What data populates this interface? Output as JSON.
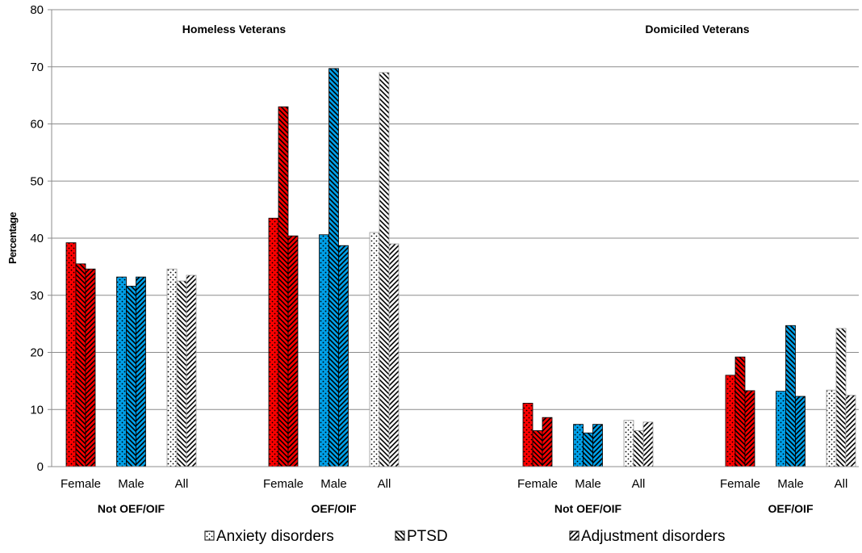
{
  "chart_data": {
    "type": "bar",
    "ylabel": "Percentage",
    "ylim": [
      0,
      80
    ],
    "yticks": [
      0,
      10,
      20,
      30,
      40,
      50,
      60,
      70,
      80
    ],
    "grid": true,
    "legend_position": "bottom",
    "colors": {
      "female": "#ff0000",
      "male": "#00a0e8",
      "all": "#ffffff"
    },
    "legend": [
      {
        "name": "Anxiety disorders",
        "pattern": "dots"
      },
      {
        "name": "PTSD",
        "pattern": "back-diagonal"
      },
      {
        "name": "Adjustment disorders",
        "pattern": "forward-diagonal"
      }
    ],
    "panels": [
      {
        "title": "Homeless Veterans",
        "groups": [
          {
            "name": "Not OEF/OIF",
            "categories": [
              {
                "label": "Female",
                "values": [
                  39.2,
                  35.5,
                  34.6
                ]
              },
              {
                "label": "Male",
                "values": [
                  33.2,
                  31.6,
                  33.2
                ]
              },
              {
                "label": "All",
                "values": [
                  34.6,
                  32.5,
                  33.5
                ]
              }
            ]
          },
          {
            "name": "OEF/OIF",
            "categories": [
              {
                "label": "Female",
                "values": [
                  43.5,
                  63.0,
                  40.4
                ]
              },
              {
                "label": "Male",
                "values": [
                  40.6,
                  69.7,
                  38.7
                ]
              },
              {
                "label": "All",
                "values": [
                  41.0,
                  69.0,
                  39.0
                ]
              }
            ]
          }
        ]
      },
      {
        "title": "Domiciled Veterans",
        "groups": [
          {
            "name": "Not OEF/OIF",
            "categories": [
              {
                "label": "Female",
                "values": [
                  11.1,
                  6.3,
                  8.6
                ]
              },
              {
                "label": "Male",
                "values": [
                  7.4,
                  5.9,
                  7.4
                ]
              },
              {
                "label": "All",
                "values": [
                  8.1,
                  6.3,
                  7.8
                ]
              }
            ]
          },
          {
            "name": "OEF/OIF",
            "categories": [
              {
                "label": "Female",
                "values": [
                  16.0,
                  19.2,
                  13.3
                ]
              },
              {
                "label": "Male",
                "values": [
                  13.2,
                  24.7,
                  12.3
                ]
              },
              {
                "label": "All",
                "values": [
                  13.4,
                  24.2,
                  12.5
                ]
              }
            ]
          }
        ]
      }
    ]
  }
}
